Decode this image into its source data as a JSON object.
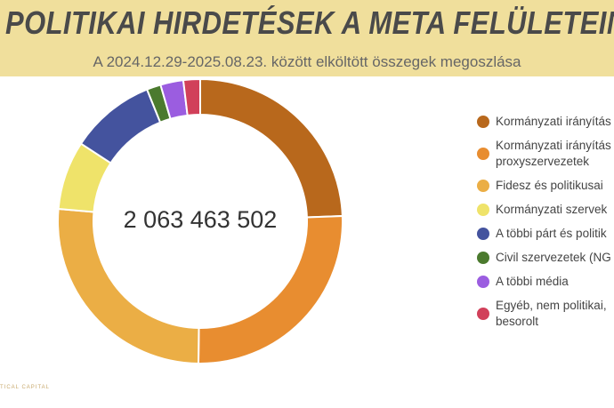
{
  "header": {
    "title": "POLITIKAI HIRDETÉSEK A META FELÜLETEIN",
    "subtitle": "A 2024.12.29-2025.08.23. között elköltött összegek megoszlása"
  },
  "logo": "TICAL CAPITAL",
  "chart_data": {
    "type": "pie",
    "donut": true,
    "center_label": "2 063 463 502",
    "legend_position": "right",
    "series": [
      {
        "name": "Kormányzati irányítás",
        "value": 24.4,
        "color": "#b8681c"
      },
      {
        "name": "Kormányzati irányítás proxyszervezetek",
        "value": 25.8,
        "color": "#e88d30"
      },
      {
        "name": "Fidesz és politikusai",
        "value": 26.2,
        "color": "#ebae45"
      },
      {
        "name": "Kormányzati szervek",
        "value": 7.8,
        "color": "#efe36a"
      },
      {
        "name": "A többi párt és politik",
        "value": 9.7,
        "color": "#44539e"
      },
      {
        "name": "Civil szervezetek (NG",
        "value": 1.6,
        "color": "#4b7a2e"
      },
      {
        "name": "A többi média",
        "value": 2.6,
        "color": "#9b5de0"
      },
      {
        "name": "Egyéb, nem politikai, besorolt",
        "value": 1.9,
        "color": "#d1405a"
      }
    ]
  }
}
